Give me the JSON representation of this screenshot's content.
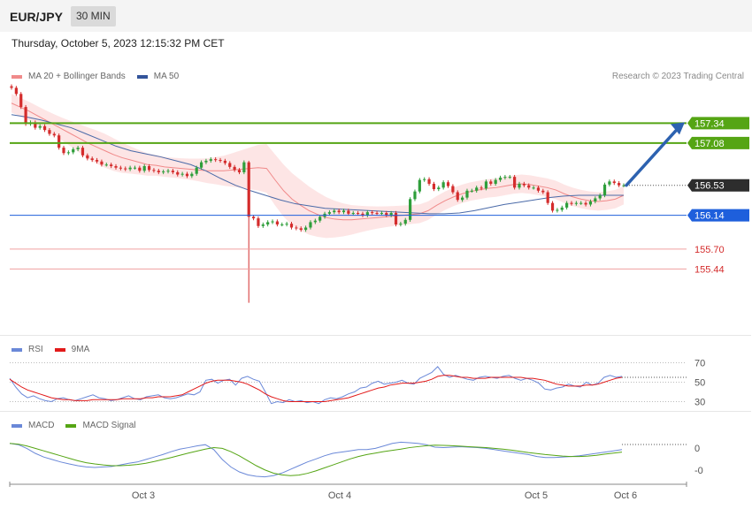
{
  "header": {
    "symbol": "EUR/JPY",
    "timeframe": "30 MIN",
    "datetime": "Thursday, October 5, 2023 12:15:32 PM CET"
  },
  "legend": {
    "ma20_label": "MA 20 + Bollinger Bands",
    "ma50_label": "MA 50",
    "credit": "Research © 2023 Trading Central",
    "rsi_label": "RSI",
    "rsi_ma_label": "9MA",
    "macd_label": "MACD",
    "macd_signal_label": "MACD Signal"
  },
  "colors": {
    "candle_up": "#2e9e3a",
    "candle_down": "#d42c2c",
    "band_fill": "#fde2e2",
    "ma20": "#f08a8a",
    "ma50": "#4a6aa8",
    "resistance": "#55a514",
    "support": "#1e5fdc",
    "support_light": "#f0a0a0",
    "rsi_line": "#6a88d8",
    "rsi_ma": "#e21a1a",
    "macd": "#6a88d8",
    "macd_signal": "#55a514",
    "arrow": "#2d62b0"
  },
  "chart_data": [
    {
      "type": "candlestick",
      "title": "EUR/JPY 30 MIN",
      "x_ticks": [
        "Oct 3",
        "Oct 4",
        "Oct 5",
        "Oct 6"
      ],
      "ylim": [
        154.8,
        158.0
      ],
      "close": [
        157.8,
        157.72,
        157.55,
        157.33,
        157.35,
        157.28,
        157.3,
        157.25,
        157.2,
        157.18,
        157.02,
        156.95,
        156.96,
        157.0,
        157.02,
        156.92,
        156.88,
        156.86,
        156.84,
        156.8,
        156.8,
        156.78,
        156.76,
        156.75,
        156.74,
        156.76,
        156.76,
        156.72,
        156.78,
        156.73,
        156.72,
        156.7,
        156.71,
        156.72,
        156.7,
        156.67,
        156.68,
        156.65,
        156.68,
        156.76,
        156.83,
        156.85,
        156.87,
        156.86,
        156.85,
        156.82,
        156.77,
        156.73,
        156.7,
        156.83,
        156.12,
        156.1,
        156.0,
        156.02,
        156.05,
        156.06,
        156.02,
        156.02,
        156.03,
        155.98,
        155.97,
        155.95,
        155.98,
        156.05,
        156.07,
        156.12,
        156.16,
        156.18,
        156.2,
        156.18,
        156.2,
        156.16,
        156.17,
        156.16,
        156.14,
        156.18,
        156.17,
        156.16,
        156.17,
        156.14,
        156.17,
        156.02,
        156.03,
        156.08,
        156.35,
        156.45,
        156.6,
        156.61,
        156.55,
        156.48,
        156.5,
        156.57,
        156.52,
        156.44,
        156.34,
        156.37,
        156.46,
        156.46,
        156.5,
        156.49,
        156.58,
        156.55,
        156.6,
        156.63,
        156.64,
        156.64,
        156.5,
        156.55,
        156.53,
        156.5,
        156.5,
        156.46,
        156.44,
        156.3,
        156.2,
        156.21,
        156.24,
        156.3,
        156.29,
        156.3,
        156.3,
        156.28,
        156.32,
        156.36,
        156.4,
        156.54,
        156.58,
        156.56,
        156.53,
        156.53
      ],
      "overlay_series": [
        {
          "name": "MA 20",
          "values": [
            157.6,
            157.55,
            157.5,
            157.44,
            157.38,
            157.32,
            157.26,
            157.2,
            157.14,
            157.08,
            157.03,
            156.98,
            156.93,
            156.89,
            156.86,
            156.83,
            156.8,
            156.79,
            156.77,
            156.76,
            156.75,
            156.74,
            156.73,
            156.72,
            156.72,
            156.72,
            156.73,
            156.74,
            156.75,
            156.76,
            156.75,
            156.6,
            156.46,
            156.35,
            156.27,
            156.2,
            156.15,
            156.11,
            156.09,
            156.08,
            156.08,
            156.09,
            156.1,
            156.11,
            156.12,
            156.13,
            156.14,
            156.15,
            156.16,
            156.2,
            156.27,
            156.33,
            156.38,
            156.42,
            156.45,
            156.47,
            156.49,
            156.5,
            156.52,
            156.54,
            156.55,
            156.54,
            156.52,
            156.5,
            156.47,
            156.42,
            156.38,
            156.35,
            156.33,
            156.32,
            156.33,
            156.35,
            156.4
          ]
        },
        {
          "name": "MA 50",
          "values": [
            157.45,
            157.42,
            157.38,
            157.33,
            157.28,
            157.2,
            157.12,
            157.04,
            156.98,
            156.94,
            156.9,
            156.85,
            156.8,
            156.72,
            156.62,
            156.53,
            156.46,
            156.4,
            156.34,
            156.29,
            156.26,
            156.23,
            156.22,
            156.21,
            156.2,
            156.19,
            156.18,
            156.17,
            156.16,
            156.16,
            156.17,
            156.2,
            156.24,
            156.28,
            156.31,
            156.34,
            156.37,
            156.39,
            156.4,
            156.4,
            156.4,
            156.4
          ]
        }
      ],
      "levels": {
        "last": 156.53,
        "resistance": [
          157.34,
          157.08
        ],
        "support": [
          156.14,
          155.7,
          155.44
        ]
      },
      "level_labels": [
        "157.34",
        "157.08",
        "156.53",
        "156.14",
        "155.70",
        "155.44"
      ],
      "forecast": {
        "from": 156.53,
        "to": 157.34
      }
    },
    {
      "type": "line",
      "name": "RSI",
      "ylim": [
        25,
        75
      ],
      "y_ticks": [
        "70",
        "50",
        "30"
      ],
      "series": [
        {
          "name": "RSI",
          "values": [
            54,
            45,
            38,
            34,
            36,
            33,
            31,
            30,
            33,
            34,
            32,
            31,
            33,
            35,
            37,
            34,
            33,
            31,
            32,
            34,
            36,
            33,
            32,
            35,
            36,
            37,
            34,
            33,
            34,
            36,
            38,
            37,
            40,
            52,
            53,
            49,
            52,
            53,
            47,
            54,
            56,
            53,
            51,
            40,
            28,
            30,
            29,
            32,
            30,
            31,
            29,
            30,
            28,
            32,
            34,
            33,
            35,
            38,
            40,
            44,
            45,
            49,
            51,
            48,
            49,
            50,
            52,
            49,
            48,
            54,
            57,
            60,
            66,
            58,
            55,
            57,
            55,
            53,
            52,
            55,
            56,
            55,
            54,
            56,
            57,
            54,
            52,
            54,
            52,
            49,
            43,
            42,
            44,
            45,
            48,
            46,
            45,
            50,
            47,
            49,
            55,
            57,
            55,
            56
          ]
        },
        {
          "name": "9MA",
          "values": [
            53,
            49,
            45,
            42,
            40,
            38,
            36,
            34,
            33,
            32,
            32,
            31,
            31,
            31,
            32,
            32,
            32,
            32,
            32,
            33,
            33,
            33,
            33,
            34,
            34,
            35,
            35,
            35,
            36,
            37,
            40,
            43,
            46,
            49,
            51,
            52,
            52,
            52,
            51,
            50,
            48,
            45,
            42,
            38,
            35,
            33,
            31,
            30,
            30,
            30,
            30,
            30,
            30,
            30,
            31,
            32,
            33,
            34,
            36,
            38,
            40,
            42,
            44,
            45,
            47,
            48,
            49,
            49,
            49,
            50,
            51,
            53,
            56,
            57,
            57,
            56,
            55,
            55,
            54,
            54,
            54,
            55,
            55,
            55,
            55,
            55,
            55,
            54,
            54,
            53,
            52,
            50,
            48,
            47,
            46,
            46,
            46,
            47,
            47,
            48,
            50,
            52,
            54,
            55
          ]
        }
      ]
    },
    {
      "type": "line",
      "name": "MACD",
      "ylim": [
        -0.12,
        0.08
      ],
      "y_ticks": [
        "0",
        "-0"
      ],
      "series": [
        {
          "name": "MACD",
          "values": [
            0.045,
            0.04,
            0.025,
            0.005,
            -0.01,
            -0.02,
            -0.03,
            -0.038,
            -0.045,
            -0.05,
            -0.052,
            -0.05,
            -0.048,
            -0.042,
            -0.035,
            -0.03,
            -0.02,
            -0.01,
            0.0,
            0.012,
            0.022,
            0.028,
            0.035,
            0.04,
            0.02,
            -0.02,
            -0.05,
            -0.07,
            -0.082,
            -0.088,
            -0.09,
            -0.085,
            -0.075,
            -0.06,
            -0.045,
            -0.03,
            -0.018,
            -0.005,
            0.005,
            0.01,
            0.015,
            0.02,
            0.02,
            0.025,
            0.035,
            0.045,
            0.05,
            0.048,
            0.045,
            0.04,
            0.03,
            0.028,
            0.03,
            0.032,
            0.03,
            0.028,
            0.025,
            0.02,
            0.015,
            0.01,
            0.005,
            0.0,
            -0.008,
            -0.012,
            -0.012,
            -0.01,
            -0.008,
            -0.005,
            0.0,
            0.005,
            0.01,
            0.015,
            0.02
          ]
        },
        {
          "name": "MACD Signal",
          "values": [
            0.045,
            0.042,
            0.035,
            0.025,
            0.015,
            0.005,
            -0.005,
            -0.015,
            -0.025,
            -0.033,
            -0.038,
            -0.042,
            -0.045,
            -0.045,
            -0.043,
            -0.04,
            -0.035,
            -0.028,
            -0.02,
            -0.012,
            -0.003,
            0.006,
            0.014,
            0.022,
            0.028,
            0.025,
            0.012,
            -0.005,
            -0.025,
            -0.045,
            -0.062,
            -0.075,
            -0.082,
            -0.085,
            -0.083,
            -0.076,
            -0.066,
            -0.054,
            -0.042,
            -0.03,
            -0.018,
            -0.008,
            0.0,
            0.006,
            0.012,
            0.017,
            0.022,
            0.028,
            0.032,
            0.036,
            0.038,
            0.037,
            0.036,
            0.034,
            0.032,
            0.03,
            0.028,
            0.025,
            0.022,
            0.018,
            0.013,
            0.008,
            0.004,
            0.0,
            -0.003,
            -0.006,
            -0.008,
            -0.008,
            -0.006,
            -0.003,
            0.002,
            0.006,
            0.01
          ]
        }
      ]
    }
  ]
}
